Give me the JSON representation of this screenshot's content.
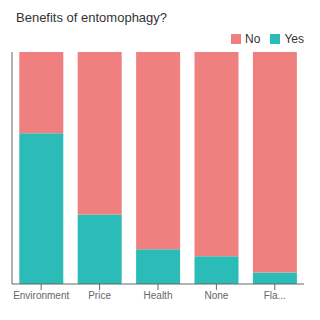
{
  "chart_data": {
    "type": "bar",
    "title": "Benefits of entomophagy?",
    "categories": [
      "Environment",
      "Price",
      "Health",
      "None",
      "Fla..."
    ],
    "series": [
      {
        "name": "Yes",
        "color": "#2BBCB8",
        "values": [
          0.65,
          0.3,
          0.15,
          0.12,
          0.05
        ]
      },
      {
        "name": "No",
        "color": "#F08080",
        "values": [
          0.35,
          0.7,
          0.85,
          0.88,
          0.95
        ]
      }
    ],
    "stacked": true,
    "ylim": [
      0,
      1.0
    ],
    "grid": false,
    "legend": "upper right",
    "tick_labels": "x"
  }
}
